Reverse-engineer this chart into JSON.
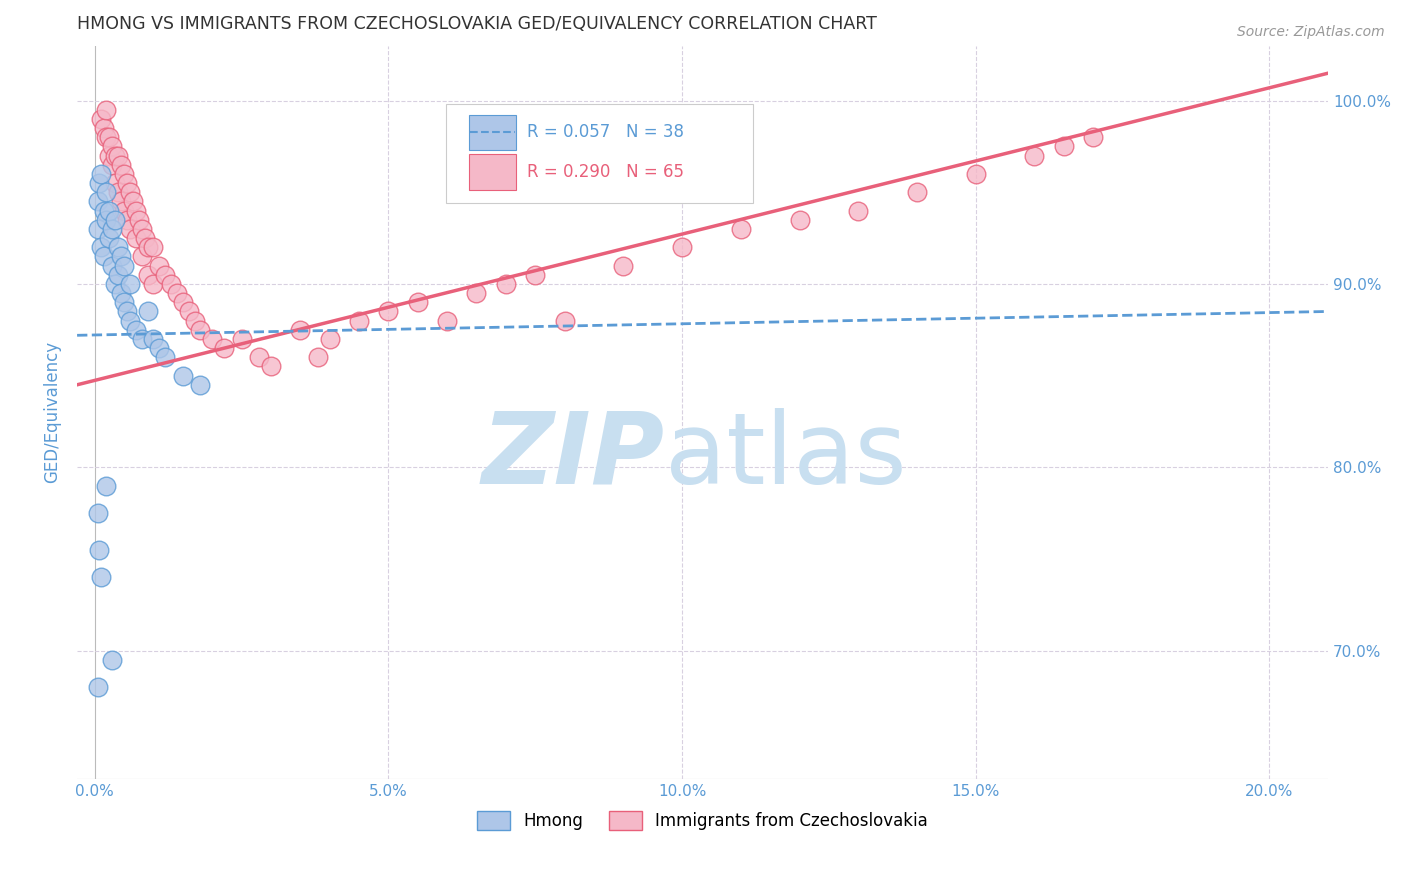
{
  "title": "HMONG VS IMMIGRANTS FROM CZECHOSLOVAKIA GED/EQUIVALENCY CORRELATION CHART",
  "source": "Source: ZipAtlas.com",
  "xlabel_ticks": [
    "0.0%",
    "5.0%",
    "10.0%",
    "15.0%",
    "20.0%"
  ],
  "xlabel_vals": [
    0.0,
    5.0,
    10.0,
    15.0,
    20.0
  ],
  "ylabel": "GED/Equivalency",
  "ylabel_ticks": [
    "70.0%",
    "80.0%",
    "90.0%",
    "100.0%"
  ],
  "ylabel_vals": [
    70.0,
    80.0,
    90.0,
    100.0
  ],
  "ymin": 63.0,
  "ymax": 103.0,
  "xmin": -0.3,
  "xmax": 21.0,
  "hmong_R": 0.057,
  "hmong_N": 38,
  "czech_R": 0.29,
  "czech_N": 65,
  "hmong_color": "#aec6e8",
  "czech_color": "#f5b8c8",
  "hmong_line_color": "#5b9bd5",
  "czech_line_color": "#e8607a",
  "watermark_zip": "ZIP",
  "watermark_atlas": "atlas",
  "watermark_color_zip": "#c8dff0",
  "watermark_color_atlas": "#c8dff0",
  "grid_color": "#d8d0e0",
  "title_color": "#333333",
  "axis_label_color": "#5b9bd5",
  "tick_color": "#5b9bd5",
  "hmong_trend_x0": -0.3,
  "hmong_trend_x1": 21.0,
  "hmong_trend_y0": 87.2,
  "hmong_trend_y1": 88.5,
  "czech_trend_x0": -0.3,
  "czech_trend_x1": 21.0,
  "czech_trend_y0": 84.5,
  "czech_trend_y1": 101.5
}
